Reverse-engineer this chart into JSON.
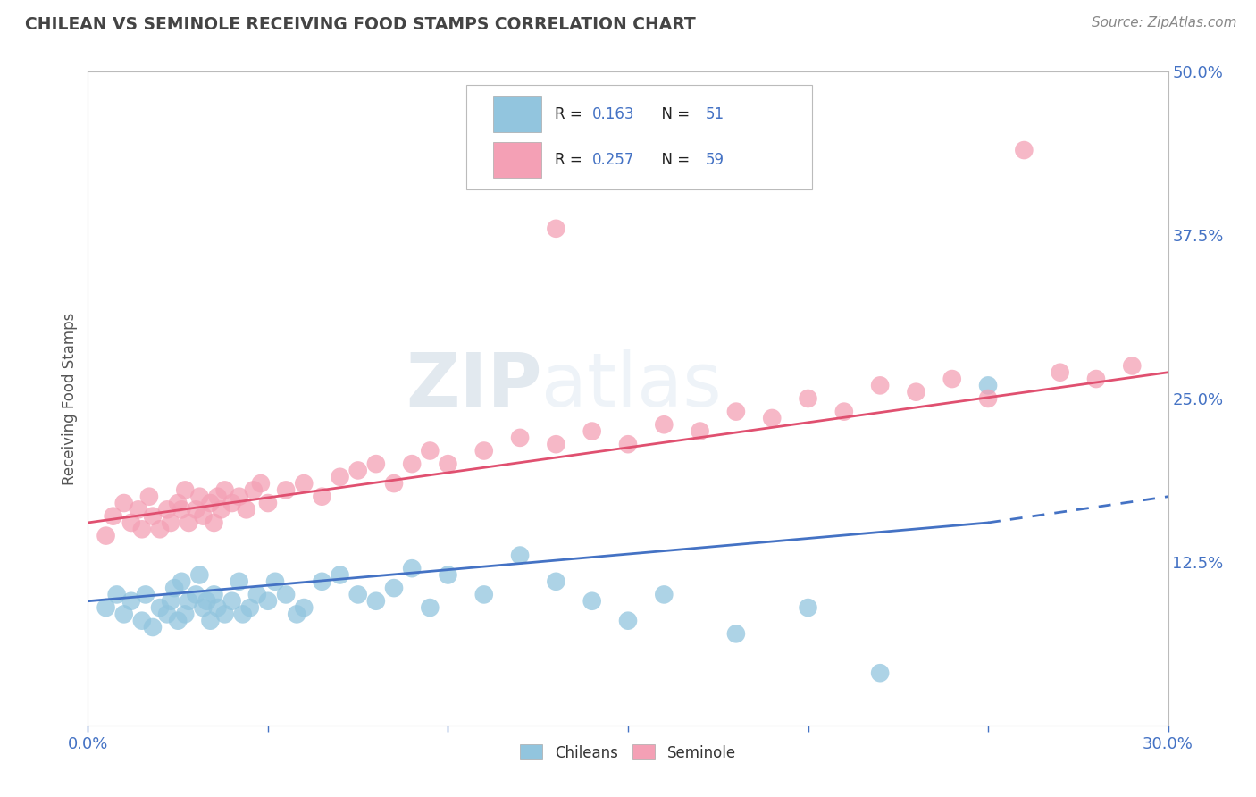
{
  "title": "CHILEAN VS SEMINOLE RECEIVING FOOD STAMPS CORRELATION CHART",
  "source": "Source: ZipAtlas.com",
  "ylabel": "Receiving Food Stamps",
  "xlim": [
    0.0,
    0.3
  ],
  "ylim": [
    0.0,
    0.5
  ],
  "chilean_color": "#92c5de",
  "seminole_color": "#f4a0b5",
  "chilean_line_color": "#4472c4",
  "seminole_line_color": "#e05070",
  "R_chilean": 0.163,
  "N_chilean": 51,
  "R_seminole": 0.257,
  "N_seminole": 59,
  "legend_label_chilean": "Chileans",
  "legend_label_seminole": "Seminole",
  "background_color": "#ffffff",
  "grid_color": "#cccccc",
  "tick_color": "#4472c4",
  "chilean_x": [
    0.005,
    0.008,
    0.01,
    0.012,
    0.015,
    0.016,
    0.018,
    0.02,
    0.022,
    0.023,
    0.024,
    0.025,
    0.026,
    0.027,
    0.028,
    0.03,
    0.031,
    0.032,
    0.033,
    0.034,
    0.035,
    0.036,
    0.038,
    0.04,
    0.042,
    0.043,
    0.045,
    0.047,
    0.05,
    0.052,
    0.055,
    0.058,
    0.06,
    0.065,
    0.07,
    0.075,
    0.08,
    0.085,
    0.09,
    0.095,
    0.1,
    0.11,
    0.12,
    0.13,
    0.14,
    0.15,
    0.16,
    0.18,
    0.2,
    0.22,
    0.25
  ],
  "chilean_y": [
    0.09,
    0.1,
    0.085,
    0.095,
    0.08,
    0.1,
    0.075,
    0.09,
    0.085,
    0.095,
    0.105,
    0.08,
    0.11,
    0.085,
    0.095,
    0.1,
    0.115,
    0.09,
    0.095,
    0.08,
    0.1,
    0.09,
    0.085,
    0.095,
    0.11,
    0.085,
    0.09,
    0.1,
    0.095,
    0.11,
    0.1,
    0.085,
    0.09,
    0.11,
    0.115,
    0.1,
    0.095,
    0.105,
    0.12,
    0.09,
    0.115,
    0.1,
    0.13,
    0.11,
    0.095,
    0.08,
    0.1,
    0.07,
    0.09,
    0.04,
    0.26
  ],
  "seminole_x": [
    0.005,
    0.007,
    0.01,
    0.012,
    0.014,
    0.015,
    0.017,
    0.018,
    0.02,
    0.022,
    0.023,
    0.025,
    0.026,
    0.027,
    0.028,
    0.03,
    0.031,
    0.032,
    0.034,
    0.035,
    0.036,
    0.037,
    0.038,
    0.04,
    0.042,
    0.044,
    0.046,
    0.048,
    0.05,
    0.055,
    0.06,
    0.065,
    0.07,
    0.075,
    0.08,
    0.085,
    0.09,
    0.095,
    0.1,
    0.11,
    0.12,
    0.13,
    0.14,
    0.15,
    0.16,
    0.17,
    0.18,
    0.19,
    0.2,
    0.21,
    0.22,
    0.23,
    0.24,
    0.25,
    0.26,
    0.27,
    0.28,
    0.29,
    0.13
  ],
  "seminole_y": [
    0.145,
    0.16,
    0.17,
    0.155,
    0.165,
    0.15,
    0.175,
    0.16,
    0.15,
    0.165,
    0.155,
    0.17,
    0.165,
    0.18,
    0.155,
    0.165,
    0.175,
    0.16,
    0.17,
    0.155,
    0.175,
    0.165,
    0.18,
    0.17,
    0.175,
    0.165,
    0.18,
    0.185,
    0.17,
    0.18,
    0.185,
    0.175,
    0.19,
    0.195,
    0.2,
    0.185,
    0.2,
    0.21,
    0.2,
    0.21,
    0.22,
    0.215,
    0.225,
    0.215,
    0.23,
    0.225,
    0.24,
    0.235,
    0.25,
    0.24,
    0.26,
    0.255,
    0.265,
    0.25,
    0.44,
    0.27,
    0.265,
    0.275,
    0.38
  ],
  "ch_line_x0": 0.0,
  "ch_line_x_solid_end": 0.25,
  "ch_line_x_end": 0.3,
  "ch_line_y0": 0.095,
  "ch_line_y_solid_end": 0.155,
  "ch_line_y_end": 0.175,
  "sem_line_x0": 0.0,
  "sem_line_x_end": 0.3,
  "sem_line_y0": 0.155,
  "sem_line_y_end": 0.27
}
